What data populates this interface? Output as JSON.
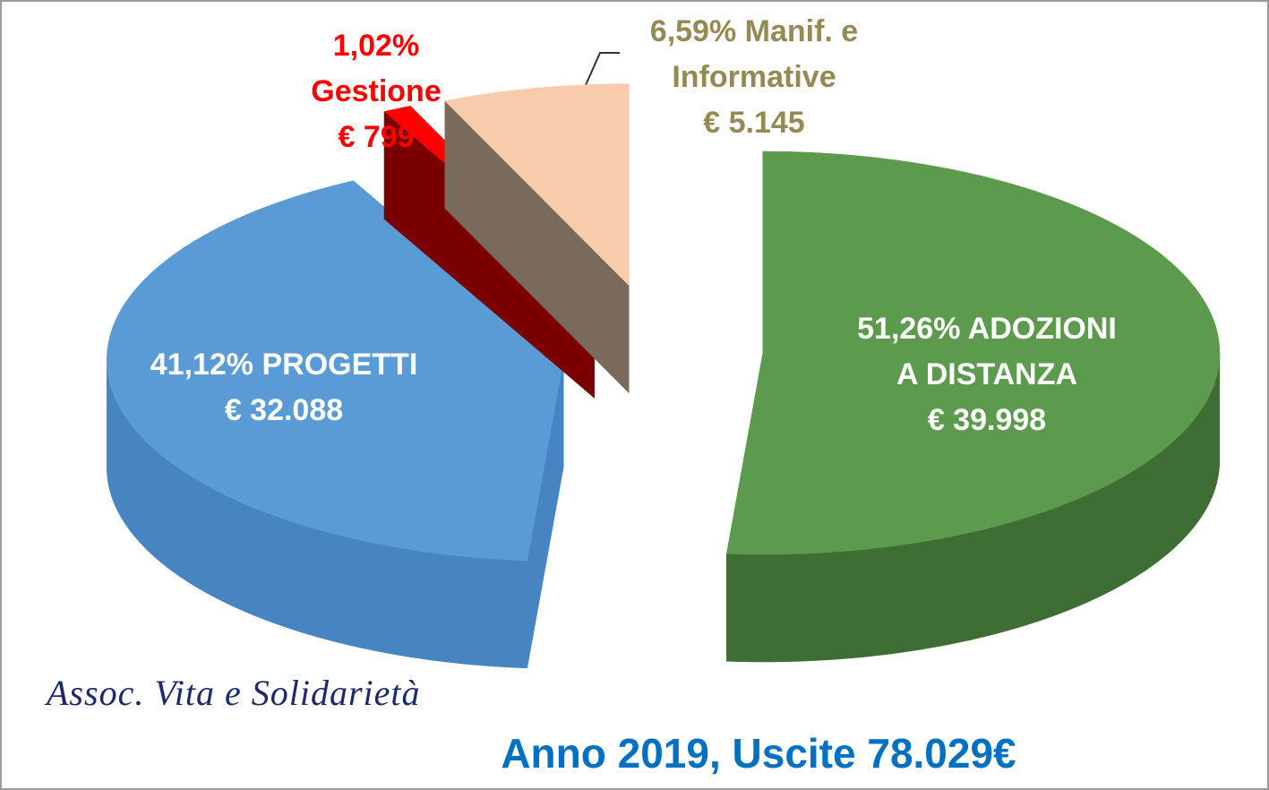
{
  "chart_data": {
    "type": "pie",
    "title": "Anno 2019, Uscite 78.029€",
    "watermark": "Assoc. Vita e Solidarietà",
    "categories": [
      "ADOZIONI A DISTANZA",
      "PROGETTI",
      "Gestione",
      "Manif. e Informative"
    ],
    "values": [
      51.26,
      41.12,
      1.02,
      6.59
    ],
    "value_labels": [
      "51,26%",
      "41,12%",
      "1,02%",
      "6,59%"
    ],
    "amounts": [
      39998,
      32088,
      799,
      5145
    ],
    "amount_labels": [
      "€ 39.998",
      "€ 32.088",
      "€ 799",
      "€ 5.145"
    ],
    "colors": [
      "#5c9b4e",
      "#5b9bd5",
      "#ff0000",
      "#f8cbad"
    ],
    "side_colors": [
      "#3e6e33",
      "#4684c2",
      "#7a0000",
      "#7a6a5c"
    ],
    "label_colors": [
      "#ffffff",
      "#ffffff",
      "#ff0000",
      "#948a54"
    ]
  }
}
